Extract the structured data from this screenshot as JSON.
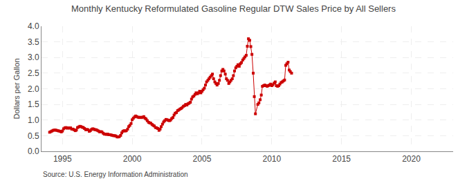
{
  "chart_data": {
    "type": "line",
    "title": "Monthly Kentucky Reformulated Gasoline Regular DTW Sales Price by All Sellers",
    "ylabel": "Dollars per Gallon",
    "annotations": [
      "Source: U.S. Energy Information Administration"
    ],
    "color": "#CC0000",
    "marker": "square",
    "line_style": "solid",
    "grid": true,
    "xlim": [
      1993.5,
      2023.0
    ],
    "ylim": [
      0.0,
      4.0
    ],
    "xticks": [
      1995,
      2000,
      2005,
      2010,
      2015,
      2020
    ],
    "yticks": [
      {
        "value": 0.0,
        "label": "0.0"
      },
      0.5,
      {
        "value": 1.0,
        "label": "1.0"
      },
      1.5,
      {
        "value": 2.0,
        "label": "2.0"
      },
      2.5,
      {
        "value": 3.0,
        "label": "3.0"
      },
      3.5,
      {
        "value": 4.0,
        "label": "4.0"
      }
    ],
    "x": [
      1994.08,
      1994.17,
      1994.25,
      1994.33,
      1994.42,
      1994.5,
      1994.58,
      1994.67,
      1994.75,
      1994.83,
      1994.92,
      1995.0,
      1995.08,
      1995.17,
      1995.25,
      1995.33,
      1995.42,
      1995.5,
      1995.58,
      1995.67,
      1995.75,
      1995.83,
      1995.92,
      1996.0,
      1996.08,
      1996.17,
      1996.25,
      1996.33,
      1996.42,
      1996.5,
      1996.58,
      1996.67,
      1996.75,
      1996.83,
      1996.92,
      1997.0,
      1997.08,
      1997.17,
      1997.25,
      1997.33,
      1997.42,
      1997.5,
      1997.58,
      1997.67,
      1997.75,
      1997.83,
      1997.92,
      1998.0,
      1998.08,
      1998.17,
      1998.25,
      1998.33,
      1998.42,
      1998.5,
      1998.58,
      1998.67,
      1998.75,
      1998.83,
      1998.92,
      1999.0,
      1999.08,
      1999.17,
      1999.25,
      1999.33,
      1999.42,
      1999.5,
      1999.58,
      1999.67,
      1999.75,
      1999.83,
      1999.92,
      2000.0,
      2000.08,
      2000.17,
      2000.25,
      2000.33,
      2000.42,
      2000.5,
      2000.58,
      2000.67,
      2000.75,
      2000.83,
      2000.92,
      2001.0,
      2001.08,
      2001.17,
      2001.25,
      2001.33,
      2001.42,
      2001.5,
      2001.58,
      2001.67,
      2001.75,
      2001.83,
      2001.92,
      2002.0,
      2002.08,
      2002.17,
      2002.25,
      2002.33,
      2002.42,
      2002.5,
      2002.58,
      2002.67,
      2002.75,
      2002.83,
      2002.92,
      2003.0,
      2003.08,
      2003.17,
      2003.25,
      2003.33,
      2003.42,
      2003.5,
      2003.58,
      2003.67,
      2003.75,
      2003.83,
      2003.92,
      2004.0,
      2004.08,
      2004.17,
      2004.25,
      2004.33,
      2004.42,
      2004.5,
      2004.58,
      2004.67,
      2004.75,
      2004.83,
      2004.92,
      2005.0,
      2005.08,
      2005.17,
      2005.25,
      2005.33,
      2005.42,
      2005.5,
      2005.58,
      2005.67,
      2005.75,
      2005.83,
      2005.92,
      2006.0,
      2006.08,
      2006.17,
      2006.25,
      2006.33,
      2006.42,
      2006.5,
      2006.58,
      2006.67,
      2006.75,
      2006.83,
      2006.92,
      2007.0,
      2007.08,
      2007.17,
      2007.25,
      2007.33,
      2007.42,
      2007.5,
      2007.58,
      2007.67,
      2007.75,
      2007.83,
      2007.92,
      2008.0,
      2008.08,
      2008.17,
      2008.25,
      2008.33,
      2008.42,
      2008.5,
      2008.58,
      2008.67,
      2008.75,
      2008.83,
      2009.0,
      2009.08,
      2009.17,
      2009.25,
      2009.33,
      2009.42,
      2009.5,
      2009.58,
      2009.67,
      2009.75,
      2009.83,
      2009.92,
      2010.0,
      2010.08,
      2010.17,
      2010.25,
      2010.33,
      2010.42,
      2010.5,
      2010.58,
      2010.67,
      2010.75,
      2010.83,
      2010.92,
      2011.0,
      2011.08,
      2011.17,
      2011.25,
      2011.33,
      2011.42
    ],
    "values": [
      0.61,
      0.63,
      0.65,
      0.67,
      0.68,
      0.68,
      0.67,
      0.66,
      0.65,
      0.64,
      0.62,
      0.65,
      0.72,
      0.75,
      0.76,
      0.74,
      0.75,
      0.74,
      0.75,
      0.71,
      0.71,
      0.69,
      0.66,
      0.68,
      0.76,
      0.78,
      0.8,
      0.79,
      0.77,
      0.76,
      0.73,
      0.69,
      0.7,
      0.69,
      0.64,
      0.66,
      0.7,
      0.72,
      0.71,
      0.69,
      0.69,
      0.67,
      0.65,
      0.62,
      0.63,
      0.62,
      0.58,
      0.55,
      0.55,
      0.54,
      0.55,
      0.53,
      0.53,
      0.52,
      0.51,
      0.5,
      0.5,
      0.49,
      0.46,
      0.46,
      0.47,
      0.51,
      0.59,
      0.64,
      0.66,
      0.65,
      0.66,
      0.71,
      0.79,
      0.83,
      0.89,
      1.01,
      1.06,
      1.1,
      1.13,
      1.11,
      1.09,
      1.08,
      1.09,
      1.08,
      1.09,
      1.11,
      1.06,
      1.03,
      0.98,
      0.93,
      0.91,
      0.9,
      0.86,
      0.83,
      0.81,
      0.76,
      0.75,
      0.73,
      0.67,
      0.71,
      0.79,
      0.87,
      0.94,
      0.98,
      1.02,
      1.01,
      0.99,
      0.98,
      1.0,
      1.05,
      1.08,
      1.16,
      1.22,
      1.24,
      1.3,
      1.32,
      1.35,
      1.37,
      1.4,
      1.44,
      1.46,
      1.5,
      1.48,
      1.52,
      1.54,
      1.57,
      1.67,
      1.74,
      1.77,
      1.82,
      1.87,
      1.84,
      1.87,
      1.92,
      1.87,
      1.92,
      1.97,
      2.02,
      2.12,
      2.22,
      2.27,
      2.32,
      2.37,
      2.42,
      2.47,
      2.32,
      2.22,
      2.17,
      2.12,
      2.17,
      2.27,
      2.42,
      2.57,
      2.62,
      2.57,
      2.47,
      2.32,
      2.27,
      2.17,
      2.22,
      2.27,
      2.32,
      2.42,
      2.57,
      2.67,
      2.72,
      2.77,
      2.72,
      2.8,
      2.84,
      2.92,
      2.97,
      3.02,
      3.07,
      3.36,
      3.6,
      3.55,
      3.35,
      3.1,
      2.5,
      1.75,
      1.2,
      1.5,
      1.55,
      1.65,
      1.8,
      2.08,
      2.1,
      2.12,
      2.1,
      2.08,
      2.1,
      2.12,
      2.15,
      2.1,
      2.13,
      2.18,
      2.22,
      2.1,
      2.08,
      2.1,
      2.15,
      2.2,
      2.22,
      2.25,
      2.28,
      2.75,
      2.8,
      2.85,
      2.6,
      2.55,
      2.5
    ]
  }
}
